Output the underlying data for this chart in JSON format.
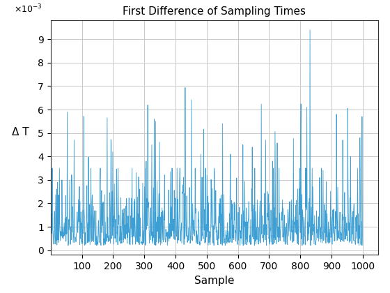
{
  "title": "First Difference of Sampling Times",
  "xlabel": "Sample",
  "ylabel": "Δ T",
  "line_color": "#3d9fd4",
  "background_color": "#ffffff",
  "grid_color": "#c8c8c8",
  "xlim": [
    0,
    1050
  ],
  "ylim": [
    -0.0002,
    0.0098
  ],
  "yticks": [
    0,
    0.001,
    0.002,
    0.003,
    0.004,
    0.005,
    0.006,
    0.007,
    0.008,
    0.009
  ],
  "ytick_labels": [
    "0",
    "1",
    "2",
    "3",
    "4",
    "5",
    "6",
    "7",
    "8",
    "9"
  ],
  "xticks": [
    100,
    200,
    300,
    400,
    500,
    600,
    700,
    800,
    900,
    1000
  ],
  "n_samples": 1000,
  "seed": 7,
  "linewidth": 0.6,
  "title_fontsize": 11,
  "axis_fontsize": 11
}
